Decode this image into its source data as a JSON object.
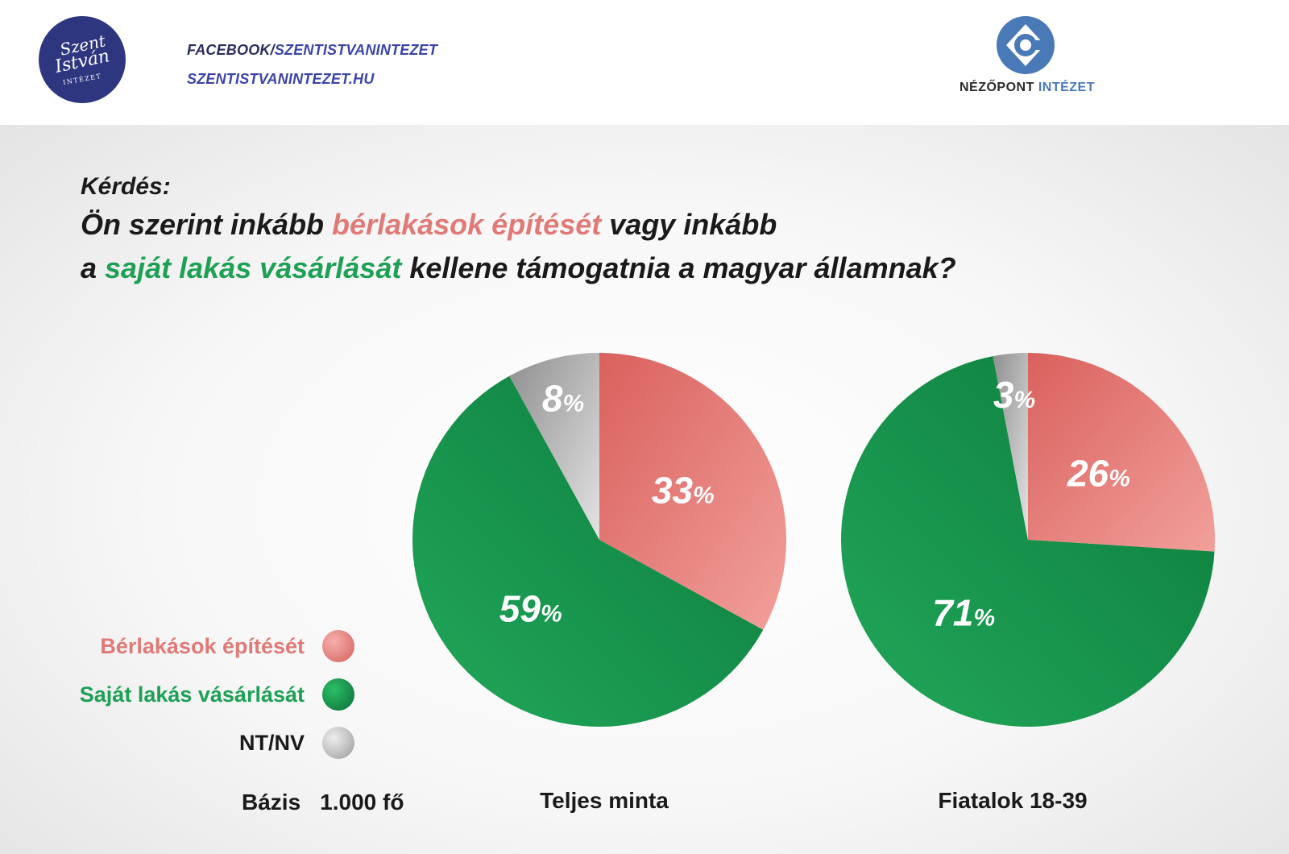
{
  "header": {
    "logo_left": {
      "line1": "Szent",
      "line2": "István",
      "line3": "INTÉZET"
    },
    "social": {
      "facebook_prefix": "FACEBOOK/",
      "facebook_handle": "SZENTISTVANINTEZET",
      "website": "SZENTISTVANINTEZET.HU"
    },
    "logo_right": {
      "name": "NÉZŐPONT",
      "accent": "INTÉZET"
    }
  },
  "question": {
    "label": "Kérdés:",
    "line1_part1": "Ön szerint inkább ",
    "line1_red": "bérlakások építését",
    "line1_part2": " vagy inkább",
    "line2_part1": "a ",
    "line2_green": "saját lakás vásárlását",
    "line2_part2": " kellene támogatnia a magyar államnak?"
  },
  "legend": {
    "items": [
      {
        "label": "Bérlakások építését",
        "color": "#e8807c"
      },
      {
        "label": "Saját lakás vásárlását",
        "color": "#1e9a50"
      },
      {
        "label": "NT/NV",
        "color": "#b9b9b9"
      }
    ]
  },
  "base": {
    "label": "Bázis",
    "value": "1.000 fő"
  },
  "colors": {
    "red": "#e8807c",
    "green": "#1e9a50",
    "gray": "#b9b9b9",
    "red_text": "#e07a76",
    "green_text": "#1ea055"
  },
  "chart_data": [
    {
      "type": "pie",
      "title": "Teljes minta",
      "categories": [
        "Bérlakások építését",
        "Saját lakás vásárlását",
        "NT/NV"
      ],
      "values": [
        33,
        59,
        8
      ],
      "labels": [
        "33",
        "59",
        "8"
      ],
      "unit": "%"
    },
    {
      "type": "pie",
      "title": "Fiatalok 18-39",
      "categories": [
        "Bérlakások építését",
        "Saját lakás vásárlását",
        "NT/NV"
      ],
      "values": [
        26,
        71,
        3
      ],
      "labels": [
        "26",
        "71",
        "3"
      ],
      "unit": "%"
    }
  ]
}
